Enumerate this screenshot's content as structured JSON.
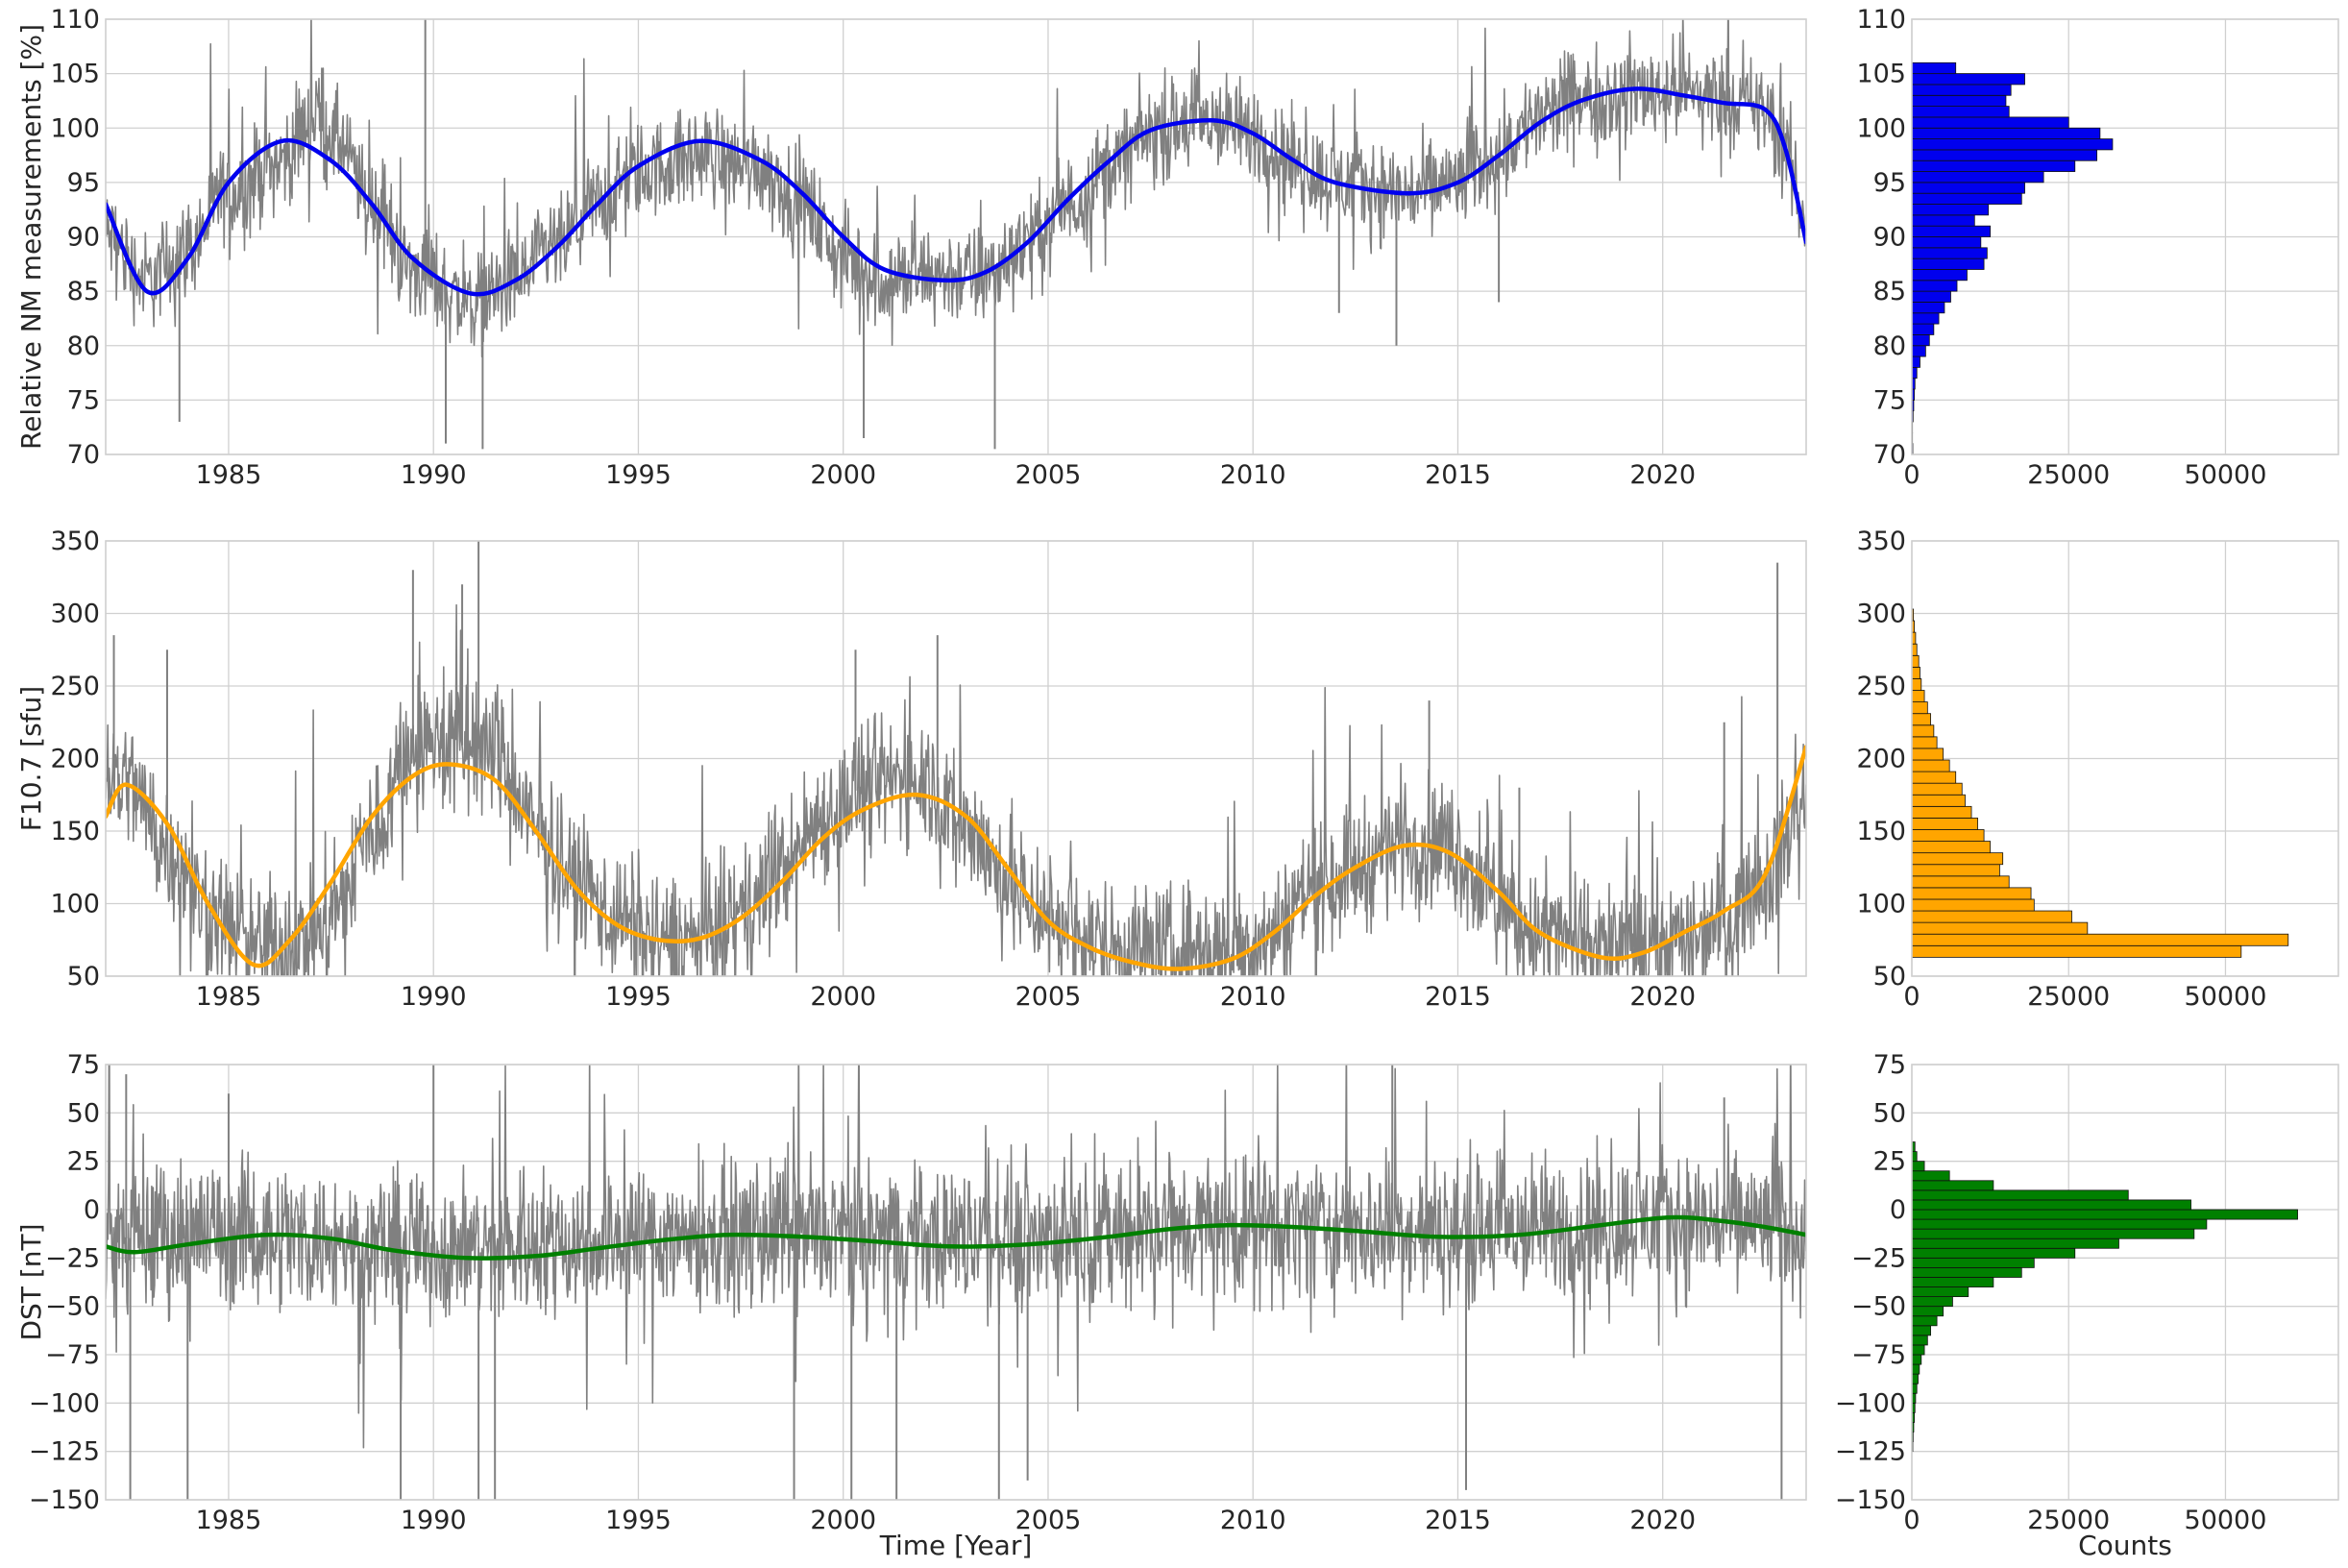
{
  "chart_data": [
    {
      "type": "line",
      "ylabel": "Relative NM measurements [%]",
      "xlabel": "",
      "xlim": [
        1982,
        2023.5
      ],
      "ylim": [
        70,
        110
      ],
      "xticks": [
        1985,
        1990,
        1995,
        2000,
        2005,
        2010,
        2015,
        2020
      ],
      "yticks": [
        70,
        75,
        80,
        85,
        90,
        95,
        100,
        105,
        110
      ],
      "grid": true,
      "raw_color": "#808080",
      "series": [
        {
          "color": "#0000ee",
          "x": [
            1982,
            1983,
            1984,
            1985,
            1986.3,
            1987.5,
            1988.5,
            1989.5,
            1990.9,
            1992,
            1993,
            1994,
            1995,
            1996.5,
            1998,
            1999,
            2000,
            2001,
            2002.5,
            2003.5,
            2004.5,
            2005.5,
            2006.5,
            2007.5,
            2009,
            2010,
            2011,
            2012,
            2013.8,
            2015,
            2016,
            2017,
            2018,
            2019.3,
            2020.5,
            2021.5,
            2022.5,
            2023,
            2023.5
          ],
          "y": [
            93,
            85,
            88,
            95,
            98.8,
            97,
            93,
            88,
            84.8,
            86,
            89,
            93,
            96.5,
            98.8,
            97,
            94,
            90,
            87,
            86,
            86.8,
            89.5,
            93.5,
            97,
            99.8,
            100.7,
            99.5,
            97,
            95,
            94,
            95,
            97.5,
            100.5,
            102.5,
            103.6,
            103,
            102.3,
            101.7,
            98,
            89.5
          ]
        }
      ],
      "raw_shape": {
        "x": [
          1982,
          1983,
          1984,
          1985,
          1986.3,
          1987.2,
          1987.6,
          1988.5,
          1989.5,
          1990.9,
          1992,
          1993,
          1994,
          1995,
          1996.5,
          1998,
          1999,
          2000,
          2001,
          2002.5,
          2003.5,
          2004.5,
          2005.5,
          2006.5,
          2007.5,
          2009,
          2010,
          2011,
          2012,
          2013.8,
          2015,
          2016,
          2017,
          2018,
          2019.3,
          2020.5,
          2021.5,
          2022.5,
          2023,
          2023.5
        ],
        "y": [
          90,
          86,
          89,
          94,
          97,
          101.5,
          99,
          93,
          87,
          84,
          86,
          89,
          93,
          96,
          97.5,
          96.5,
          93,
          88,
          86,
          86.5,
          86.5,
          89.5,
          93,
          96.5,
          99.5,
          100.5,
          99.5,
          97,
          95,
          94,
          95,
          98,
          101,
          102.5,
          103.5,
          103.5,
          103,
          101.5,
          98,
          91
        ]
      },
      "raw_noise": 2.2,
      "raw_spikes": [
        [
          1989.8,
          110
        ],
        [
          1990.3,
          71
        ],
        [
          1991.2,
          70.5
        ],
        [
          1983.8,
          73
        ],
        [
          2000.5,
          71.5
        ],
        [
          2003.7,
          70.5
        ],
        [
          2013.5,
          80
        ],
        [
          2016,
          84
        ],
        [
          2012.1,
          83
        ]
      ]
    },
    {
      "type": "line",
      "ylabel": "F10.7 [sfu]",
      "xlabel": "",
      "xlim": [
        1982,
        2023.5
      ],
      "ylim": [
        50,
        350
      ],
      "xticks": [
        1985,
        1990,
        1995,
        2000,
        2005,
        2010,
        2015,
        2020
      ],
      "yticks": [
        50,
        100,
        150,
        200,
        250,
        300,
        350
      ],
      "grid": true,
      "raw_color": "#808080",
      "series": [
        {
          "color": "#ffa500",
          "x": [
            1982,
            1982.5,
            1983.5,
            1984.5,
            1985.6,
            1986.5,
            1987.5,
            1988.5,
            1989.5,
            1990.4,
            1991.5,
            1992.5,
            1993.5,
            1994.5,
            1995.5,
            1996.5,
            1997.5,
            1998.5,
            1999.5,
            2000.5,
            2001.8,
            2003,
            2004,
            2005,
            2006,
            2007,
            2008.2,
            2009.5,
            2010.5,
            2011.5,
            2012.5,
            2013.7,
            2014.8,
            2016,
            2017,
            2018.5,
            2019.5,
            2020.5,
            2021.5,
            2022.5,
            2023.5
          ],
          "y": [
            160,
            182,
            155,
            100,
            58,
            75,
            115,
            160,
            188,
            196,
            185,
            150,
            110,
            85,
            75,
            76,
            90,
            115,
            145,
            165,
            175,
            160,
            125,
            88,
            70,
            60,
            55,
            62,
            80,
            105,
            125,
            140,
            135,
            108,
            80,
            63,
            66,
            80,
            95,
            120,
            208
          ]
        }
      ],
      "raw_shape": {
        "x": [
          1982,
          1982.5,
          1983.5,
          1984.5,
          1985.6,
          1986.5,
          1987.5,
          1988.5,
          1989.5,
          1990.4,
          1991.5,
          1992.5,
          1993.5,
          1994.5,
          1995.5,
          1996.5,
          1997.5,
          1998.5,
          1999.5,
          2000.5,
          2001.8,
          2003,
          2004,
          2005,
          2006,
          2007,
          2008.2,
          2009.5,
          2010.5,
          2011.5,
          2012.5,
          2013.7,
          2014.8,
          2016,
          2017,
          2018.5,
          2019.5,
          2020.5,
          2021.5,
          2022.5,
          2023.5
        ],
        "y": [
          190,
          185,
          140,
          95,
          72,
          72,
          90,
          150,
          210,
          210,
          205,
          150,
          115,
          90,
          75,
          75,
          90,
          125,
          160,
          180,
          190,
          155,
          115,
          90,
          75,
          70,
          68,
          70,
          80,
          115,
          125,
          145,
          140,
          100,
          80,
          70,
          70,
          75,
          90,
          120,
          170
        ]
      },
      "raw_noise": 22,
      "raw_spikes": [
        [
          1991.1,
          350
        ],
        [
          1989.5,
          330
        ],
        [
          1990.7,
          320
        ],
        [
          2000.3,
          275
        ],
        [
          2002.3,
          285
        ],
        [
          2014.3,
          240
        ],
        [
          2022.8,
          335
        ],
        [
          1982.2,
          285
        ],
        [
          1983.5,
          275
        ],
        [
          2019.3,
          110
        ],
        [
          2016.5,
          180
        ],
        [
          2021.5,
          225
        ]
      ]
    },
    {
      "type": "line",
      "ylabel": "DST [nT]",
      "xlabel": "Time [Year]",
      "xlim": [
        1982,
        2023.5
      ],
      "ylim": [
        -150,
        75
      ],
      "xticks": [
        1985,
        1990,
        1995,
        2000,
        2005,
        2010,
        2015,
        2020
      ],
      "yticks": [
        -150,
        -125,
        -100,
        -75,
        -50,
        -25,
        0,
        25,
        50,
        75
      ],
      "grid": true,
      "raw_color": "#808080",
      "series": [
        {
          "color": "#008000",
          "x": [
            1982,
            1982.7,
            1984,
            1985.9,
            1987.5,
            1989,
            1990.8,
            1992.5,
            1994,
            1995.5,
            1997.2,
            1999,
            2000.5,
            2002.6,
            2004.5,
            2006.5,
            2008,
            2009.5,
            2011,
            2012.5,
            2014.5,
            2016.5,
            2018.5,
            2020.2,
            2021.5,
            2022.5,
            2023.5
          ],
          "y": [
            -19,
            -22,
            -18,
            -13,
            -15,
            -21,
            -25,
            -24,
            -20,
            -16,
            -13,
            -14,
            -16,
            -19,
            -18,
            -14,
            -10,
            -8,
            -9,
            -11,
            -14,
            -13,
            -8,
            -4,
            -6,
            -9,
            -13
          ]
        }
      ],
      "raw_shape": {
        "x": [
          1982,
          1985,
          1990,
          1995,
          2000,
          2005,
          2010,
          2015,
          2020,
          2023.5
        ],
        "y": [
          -15,
          -12,
          -20,
          -14,
          -14,
          -13,
          -8,
          -12,
          -6,
          -8
        ]
      },
      "raw_noise": 18,
      "raw_spikes": [
        [
          1989.2,
          -150
        ],
        [
          1991.1,
          -150
        ],
        [
          1982.6,
          -150
        ],
        [
          1984,
          -150
        ],
        [
          2003.8,
          -150
        ],
        [
          2000.2,
          -150
        ],
        [
          2001.3,
          -150
        ],
        [
          2004.5,
          -140
        ],
        [
          1998.8,
          -150
        ],
        [
          2015.2,
          -145
        ],
        [
          1991.5,
          -150
        ],
        [
          2022.9,
          -150
        ],
        [
          1990,
          75
        ],
        [
          2013.4,
          75
        ],
        [
          1982.5,
          70
        ],
        [
          1985,
          60
        ],
        [
          2021.5,
          58
        ]
      ]
    },
    {
      "type": "bar",
      "orientation": "horizontal",
      "color": "#0000ee",
      "xlabel": "",
      "xlim": [
        0,
        68000
      ],
      "ylim": [
        70,
        110
      ],
      "xticks": [
        0,
        25000,
        50000
      ],
      "yticks": [
        70,
        75,
        80,
        85,
        90,
        95,
        100,
        105,
        110
      ],
      "grid": true,
      "bin_edges": [
        70,
        71,
        72,
        73,
        74,
        75,
        76,
        77,
        78,
        79,
        80,
        81,
        82,
        83,
        84,
        85,
        86,
        87,
        88,
        89,
        90,
        91,
        92,
        93,
        94,
        95,
        96,
        97,
        98,
        99,
        100,
        101,
        102,
        103,
        104,
        105,
        106
      ],
      "values": [
        150,
        100,
        100,
        200,
        300,
        400,
        500,
        800,
        1300,
        2200,
        2800,
        3500,
        4300,
        5200,
        6200,
        7200,
        8800,
        11500,
        12000,
        11000,
        12500,
        10000,
        12200,
        17500,
        18000,
        21000,
        26000,
        29500,
        32000,
        30000,
        25000,
        15500,
        15000,
        15800,
        18000,
        7000
      ]
    },
    {
      "type": "bar",
      "orientation": "horizontal",
      "color": "#ffa500",
      "xlabel": "",
      "xlim": [
        0,
        68000
      ],
      "ylim": [
        50,
        350
      ],
      "xticks": [
        0,
        25000,
        50000
      ],
      "yticks": [
        50,
        100,
        150,
        200,
        250,
        300,
        350
      ],
      "grid": true,
      "bin_edges": [
        63,
        71,
        79,
        87,
        95,
        103,
        111,
        119,
        127,
        135,
        143,
        151,
        159,
        167,
        175,
        183,
        191,
        199,
        207,
        215,
        223,
        231,
        239,
        247,
        255,
        263,
        271,
        279,
        287,
        295,
        303
      ],
      "values": [
        52500,
        60000,
        28000,
        25500,
        19500,
        19000,
        15500,
        14000,
        14500,
        12500,
        11500,
        10500,
        9500,
        8500,
        8000,
        7000,
        6000,
        5000,
        4000,
        3500,
        3000,
        2500,
        2000,
        1500,
        1300,
        1100,
        800,
        600,
        400,
        250
      ]
    },
    {
      "type": "bar",
      "orientation": "horizontal",
      "color": "#008000",
      "xlabel": "Counts",
      "xlim": [
        0,
        68000
      ],
      "ylim": [
        -150,
        75
      ],
      "xticks": [
        0,
        25000,
        50000
      ],
      "yticks": [
        -150,
        -125,
        -100,
        -75,
        -50,
        -25,
        0,
        25,
        50,
        75
      ],
      "grid": true,
      "bin_edges": [
        -125,
        -120,
        -115,
        -110,
        -105,
        -100,
        -95,
        -90,
        -85,
        -80,
        -75,
        -70,
        -65,
        -60,
        -55,
        -50,
        -45,
        -40,
        -35,
        -30,
        -25,
        -20,
        -15,
        -10,
        -5,
        0,
        5,
        10,
        15,
        20,
        25,
        30,
        35
      ],
      "values": [
        150,
        200,
        300,
        400,
        500,
        600,
        800,
        1000,
        1200,
        1500,
        2000,
        2500,
        3000,
        4000,
        5000,
        6500,
        9000,
        13000,
        17500,
        19500,
        26000,
        33000,
        45000,
        47000,
        61500,
        44500,
        34500,
        13000,
        6000,
        2000,
        800,
        500
      ]
    }
  ]
}
